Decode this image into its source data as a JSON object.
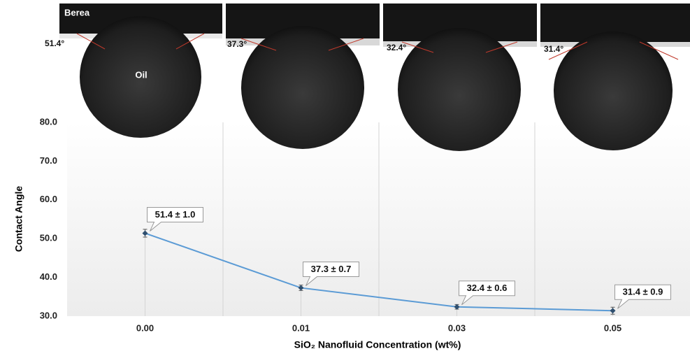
{
  "chart_data": {
    "type": "line",
    "y_label": "Contact Angle",
    "x_label": "SiO₂ Nanofluid Concentration (wt%)",
    "categories": [
      "0.00",
      "0.01",
      "0.03",
      "0.05"
    ],
    "values": [
      51.4,
      37.3,
      32.4,
      31.4
    ],
    "errors": [
      1.0,
      0.7,
      0.6,
      0.9
    ],
    "value_labels": [
      "51.4 ± 1.0",
      "37.3 ± 0.7",
      "32.4 ± 0.6",
      "31.4 ± 0.9"
    ],
    "color": "#5b9bd5",
    "ylim": [
      30,
      80
    ],
    "yticks": [
      {
        "value": 30,
        "label": "30.0"
      },
      {
        "value": 40,
        "label": "40.0"
      },
      {
        "value": 50,
        "label": "50.0"
      },
      {
        "value": 60,
        "label": "60.0"
      },
      {
        "value": 70,
        "label": "70.0"
      },
      {
        "value": 80,
        "label": "80.0"
      }
    ],
    "photo_labels": {
      "substrate": "Berea",
      "droplet": "Oil",
      "angles": [
        "51.4°",
        "37.3°",
        "32.4°",
        "31.4°"
      ]
    }
  }
}
